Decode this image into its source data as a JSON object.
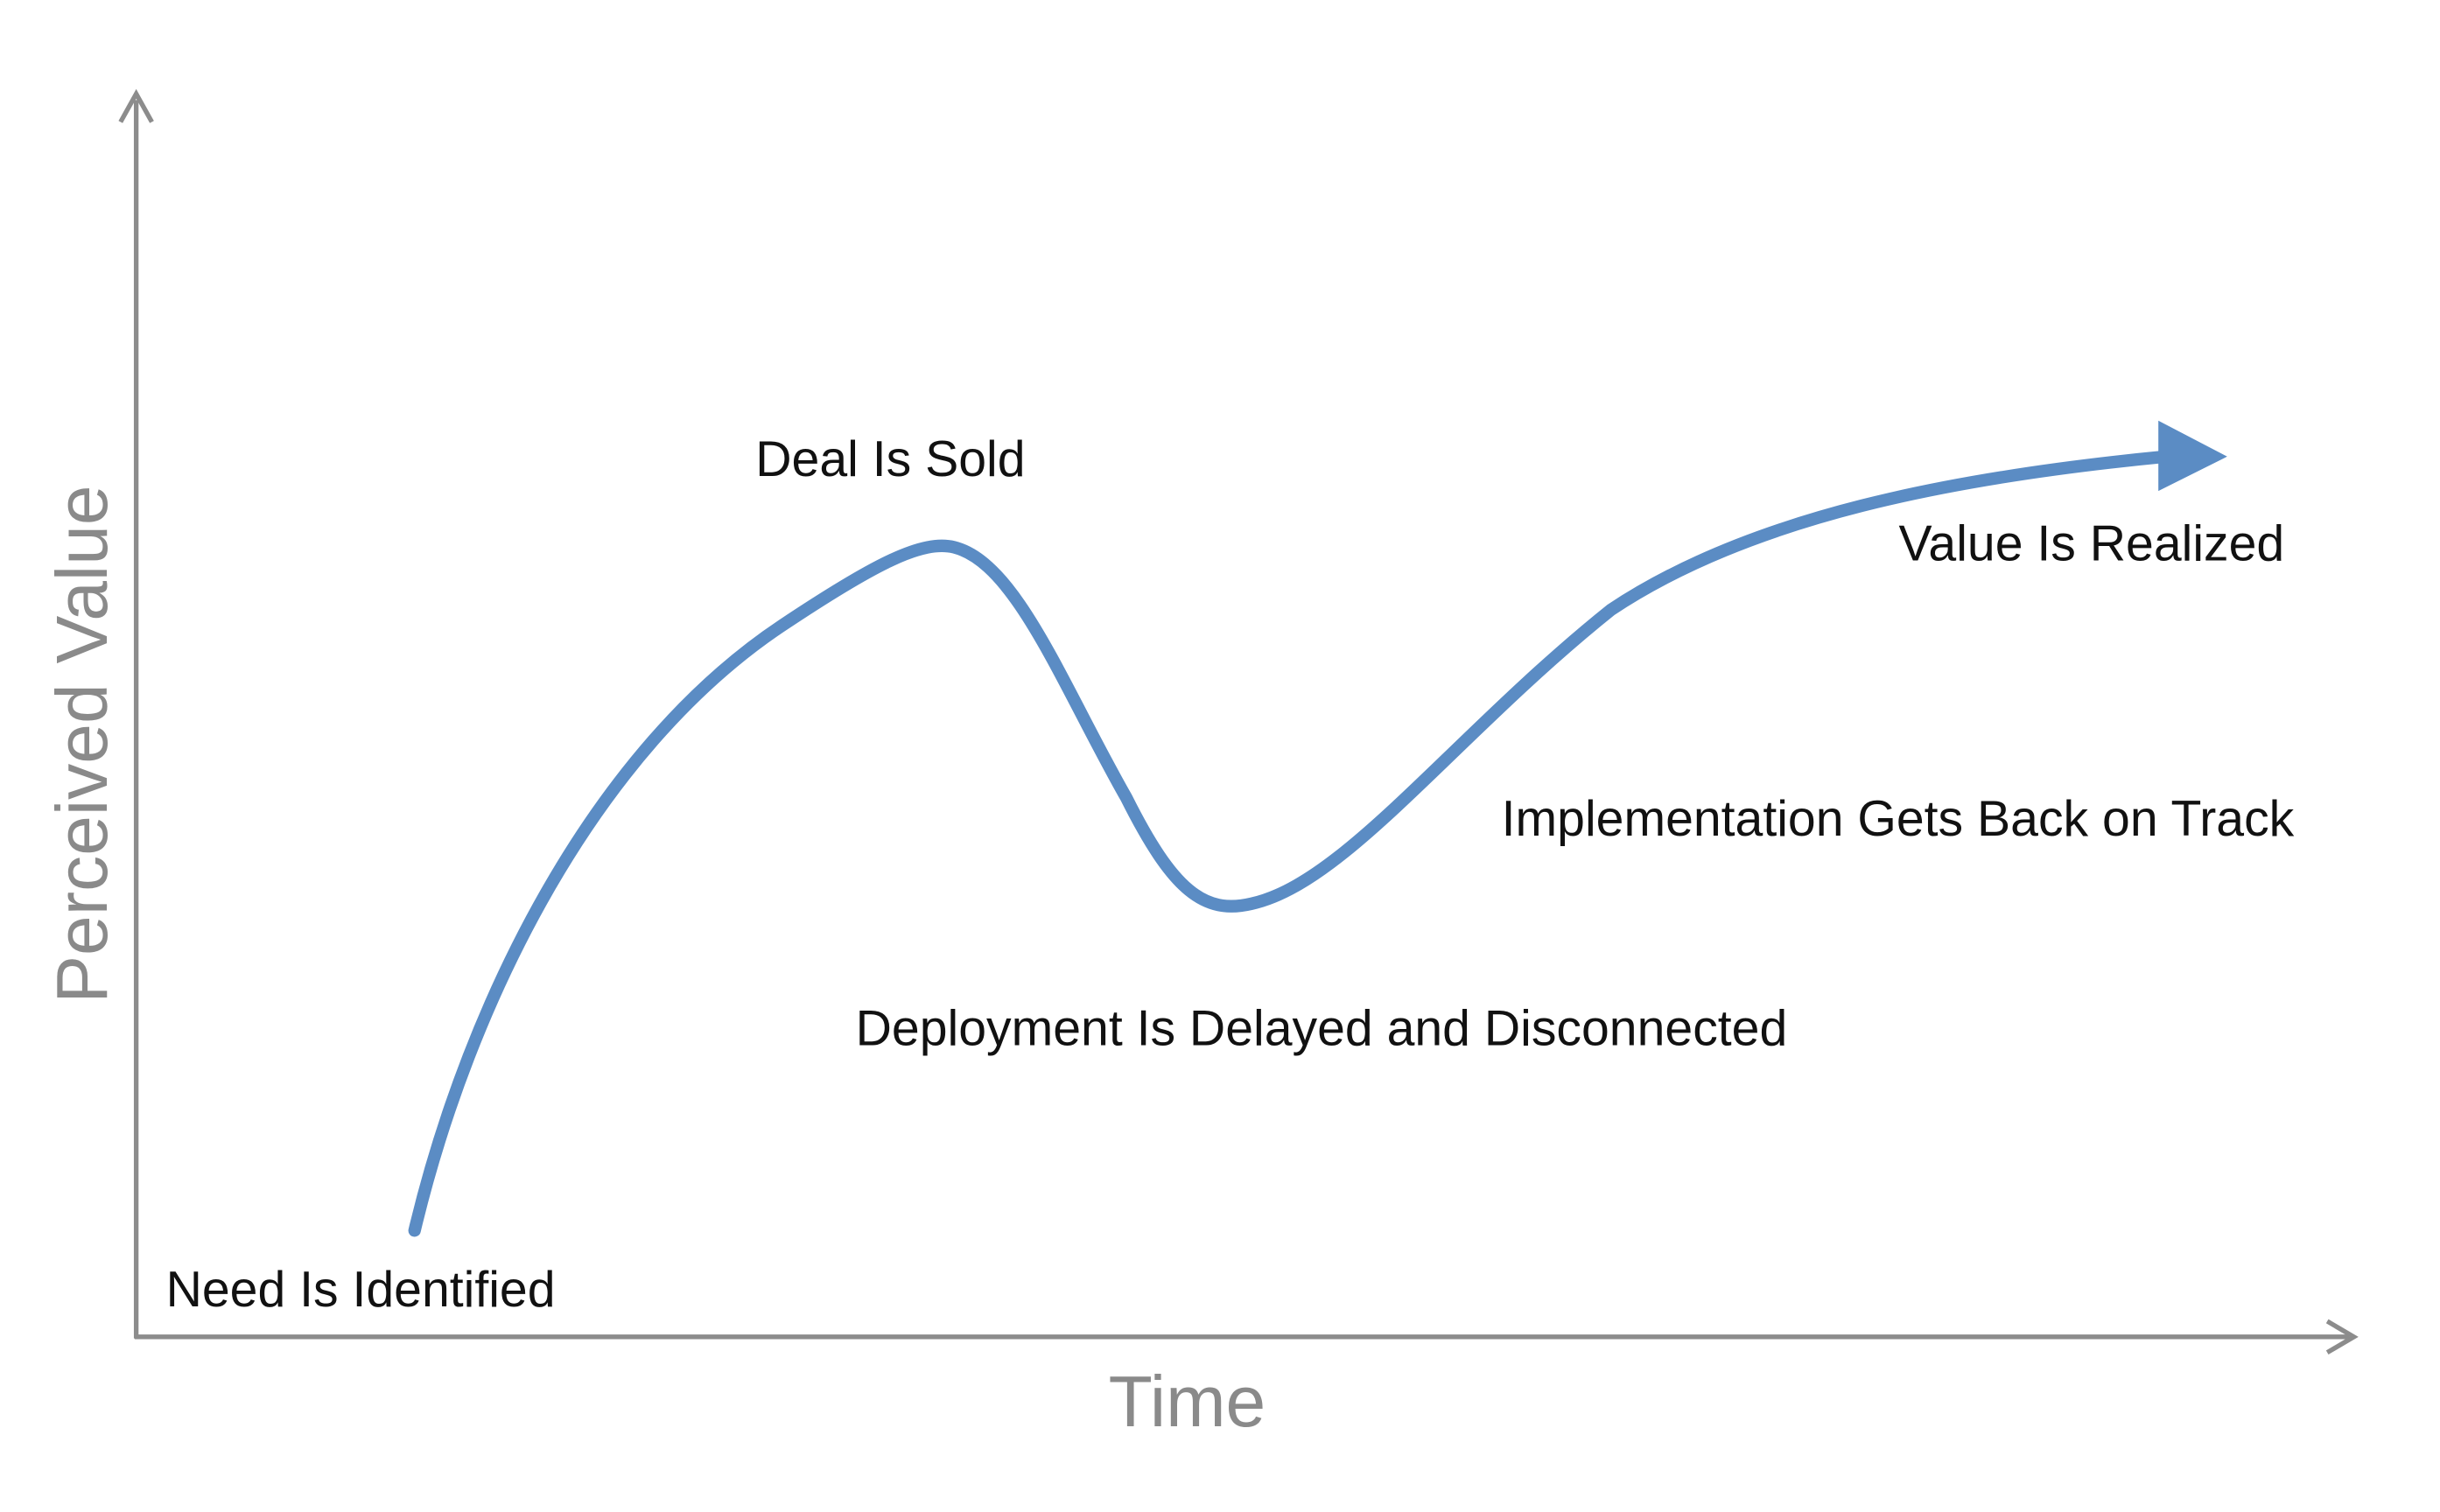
{
  "axes": {
    "x_label": "Time",
    "y_label": "Perceived Value"
  },
  "annotations": [
    "Need Is Identified",
    "Deal Is Sold",
    "Deployment Is Delayed and Disconnected",
    "Implementation Gets Back on Track",
    "Value Is Realized"
  ]
}
